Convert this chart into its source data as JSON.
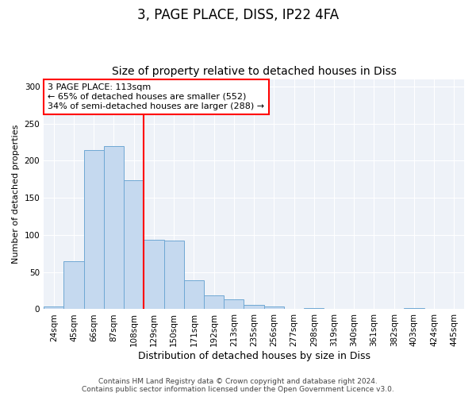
{
  "title1": "3, PAGE PLACE, DISS, IP22 4FA",
  "title2": "Size of property relative to detached houses in Diss",
  "xlabel": "Distribution of detached houses by size in Diss",
  "ylabel": "Number of detached properties",
  "bin_labels": [
    "24sqm",
    "45sqm",
    "66sqm",
    "87sqm",
    "108sqm",
    "129sqm",
    "150sqm",
    "171sqm",
    "192sqm",
    "213sqm",
    "235sqm",
    "256sqm",
    "277sqm",
    "298sqm",
    "319sqm",
    "340sqm",
    "361sqm",
    "382sqm",
    "403sqm",
    "424sqm",
    "445sqm"
  ],
  "bar_heights": [
    4,
    65,
    214,
    220,
    174,
    93,
    92,
    39,
    19,
    13,
    6,
    4,
    0,
    2,
    0,
    0,
    0,
    0,
    2,
    0,
    0
  ],
  "bar_color": "#c5d9ef",
  "bar_edge_color": "#6fa8d4",
  "red_line_x": 4.5,
  "annotation_text": "3 PAGE PLACE: 113sqm\n← 65% of detached houses are smaller (552)\n34% of semi-detached houses are larger (288) →",
  "annotation_box_color": "white",
  "annotation_box_edge_color": "red",
  "ylim": [
    0,
    310
  ],
  "yticks": [
    0,
    50,
    100,
    150,
    200,
    250,
    300
  ],
  "grid_color": "#d0d8e8",
  "bg_color": "#eef2f8",
  "footer1": "Contains HM Land Registry data © Crown copyright and database right 2024.",
  "footer2": "Contains public sector information licensed under the Open Government Licence v3.0.",
  "title1_fontsize": 12,
  "title2_fontsize": 10,
  "xlabel_fontsize": 9,
  "ylabel_fontsize": 8,
  "tick_fontsize": 7.5,
  "annot_fontsize": 8,
  "footer_fontsize": 6.5
}
